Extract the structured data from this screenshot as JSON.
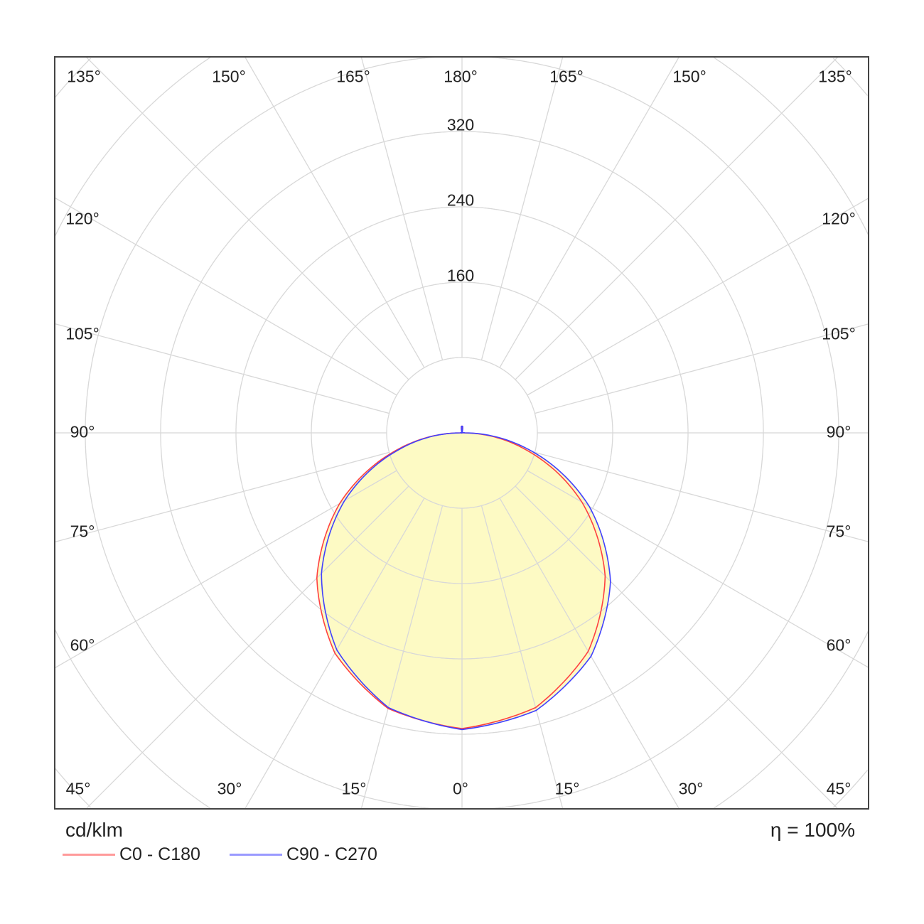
{
  "chart_data": {
    "type": "polar",
    "unit_label": "cd/klm",
    "efficiency_label": "η = 100%",
    "radial_ticks": [
      80,
      160,
      240,
      320,
      400,
      480,
      560
    ],
    "radial_tick_labels": [
      "160",
      "240",
      "320"
    ],
    "angle_labels": {
      "top": [
        "135°",
        "150°",
        "165°",
        "180°",
        "165°",
        "150°",
        "135°"
      ],
      "left": [
        "120°",
        "105°",
        "90°",
        "75°",
        "60°"
      ],
      "right": [
        "120°",
        "105°",
        "90°",
        "75°",
        "60°"
      ],
      "bottom": [
        "45°",
        "30°",
        "15°",
        "0°",
        "15°",
        "30°",
        "45°"
      ]
    },
    "gamma_angles": [
      0,
      15,
      30,
      45,
      60,
      75,
      90,
      105,
      120,
      135,
      150,
      165,
      175,
      180
    ],
    "series": [
      {
        "name": "C0 - C180",
        "color": "#ff4040",
        "legend_color": "#ff9a9a",
        "right_C0": [
          314,
          302,
          268,
          215,
          147,
          71,
          2,
          0,
          0,
          0,
          0,
          0,
          7,
          7
        ],
        "left_C180": [
          314,
          303,
          270,
          218,
          150,
          73,
          2,
          0,
          0,
          0,
          0,
          0,
          7,
          7
        ]
      },
      {
        "name": "C90 - C270",
        "color": "#4040ff",
        "legend_color": "#9a9aff",
        "right_C90": [
          315,
          305,
          274,
          223,
          156,
          78,
          3,
          0,
          0,
          0,
          0,
          0,
          7,
          7
        ],
        "left_C270": [
          315,
          302,
          266,
          211,
          144,
          70,
          2,
          0,
          0,
          0,
          0,
          0,
          7,
          7
        ]
      }
    ],
    "fill_color": "#fdfac4",
    "grid": true
  }
}
